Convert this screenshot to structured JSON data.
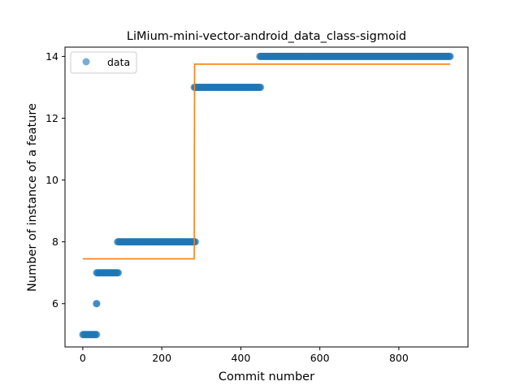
{
  "chart_data": {
    "type": "scatter",
    "title": "LiMium-mini-vector-android_data_class-sigmoid",
    "xlabel": "Commit number",
    "ylabel": "Number of instance of a feature",
    "xlim": [
      -45,
      975
    ],
    "ylim": [
      4.6,
      14.3
    ],
    "xticks": [
      0,
      200,
      400,
      600,
      800
    ],
    "yticks": [
      6,
      8,
      10,
      12,
      14
    ],
    "grid": false,
    "legend": {
      "placement": "top-left",
      "entries": [
        "data"
      ]
    },
    "colors": {
      "data": "#1f77b4",
      "fit": "#ff7f0e"
    },
    "series": [
      {
        "name": "data",
        "kind": "scatter",
        "segments": [
          {
            "x_start": 0,
            "x_end": 35,
            "y": 5
          },
          {
            "x_start": 35,
            "x_end": 35,
            "y": 6
          },
          {
            "x_start": 35,
            "x_end": 90,
            "y": 7
          },
          {
            "x_start": 88,
            "x_end": 285,
            "y": 8
          },
          {
            "x_start": 282,
            "x_end": 450,
            "y": 13
          },
          {
            "x_start": 448,
            "x_end": 930,
            "y": 14
          }
        ]
      },
      {
        "kind": "line",
        "x": [
          0,
          282,
          282,
          283,
          283,
          930
        ],
        "y": [
          7.45,
          7.45,
          7.45,
          13.75,
          13.75,
          13.75
        ]
      }
    ]
  }
}
